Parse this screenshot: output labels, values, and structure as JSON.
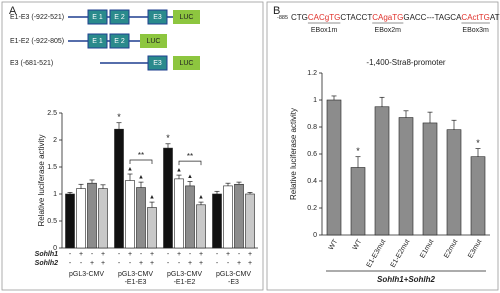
{
  "panel_a": {
    "label": "A",
    "constructs": [
      {
        "name": "E1-E3 (-922-521)",
        "elements": [
          "E 1",
          "E 2",
          "E3"
        ],
        "reporter": "LUC"
      },
      {
        "name": "E1-E2 (-922-805)",
        "elements": [
          "E 1",
          "E 2"
        ],
        "reporter": "LUC"
      },
      {
        "name": "E3 (-681-521)",
        "elements": [
          "E3"
        ],
        "reporter": "LUC"
      }
    ],
    "element_color": "#2a8a8c",
    "reporter_color": "#8dc63f"
  },
  "panel_b": {
    "label": "B",
    "sequence": {
      "start": "-885",
      "highlight_color": "#e0302a",
      "segments": [
        {
          "text": "CTG"
        },
        {
          "text": "CACgTG",
          "highlight": true,
          "label": "EBox1m"
        },
        {
          "text": "CTACCT"
        },
        {
          "text": "CAgaTG",
          "highlight": true,
          "label": "EBox2m"
        },
        {
          "text": "GACC---TAGCA"
        },
        {
          "text": "CActTG",
          "highlight": true,
          "label": "EBox3m"
        },
        {
          "text": "AT"
        }
      ]
    }
  },
  "chart_data": [
    {
      "type": "bar",
      "ylabel": "Relative luciferase activity",
      "categories": [
        "pGL3-CMV",
        "pGL3-CMV\n-E1-E3",
        "pGL3-CMV\n-E1-E2",
        "pGL3-CMV\n-E3"
      ],
      "series": [
        {
          "color": "#111111",
          "values": [
            1.0,
            2.2,
            1.85,
            1.0
          ],
          "errors": [
            0.03,
            0.12,
            0.08,
            0.05
          ]
        },
        {
          "color": "#ffffff",
          "values": [
            1.1,
            1.25,
            1.28,
            1.15
          ],
          "errors": [
            0.08,
            0.12,
            0.07,
            0.05
          ]
        },
        {
          "color": "#8c8c8c",
          "values": [
            1.2,
            1.12,
            1.15,
            1.18
          ],
          "errors": [
            0.06,
            0.1,
            0.08,
            0.04
          ]
        },
        {
          "color": "#c8c8c8",
          "values": [
            1.1,
            0.75,
            0.8,
            1.0
          ],
          "errors": [
            0.07,
            0.1,
            0.05,
            0.03
          ]
        }
      ],
      "conditions": [
        {
          "label": "Sohlh1",
          "marks": [
            "-",
            "+",
            "-",
            "+"
          ]
        },
        {
          "label": "Sohlh2",
          "marks": [
            "-",
            "-",
            "+",
            "+"
          ]
        }
      ],
      "annotations": [
        {
          "text": "*",
          "group": 1,
          "series": 0
        },
        {
          "text": "*",
          "group": 2,
          "series": 0
        },
        {
          "text": "▲",
          "group": 1,
          "series": 1
        },
        {
          "text": "▲",
          "group": 1,
          "series": 2
        },
        {
          "text": "▲",
          "group": 1,
          "series": 3
        },
        {
          "text": "▲",
          "group": 2,
          "series": 1
        },
        {
          "text": "▲",
          "group": 2,
          "series": 2
        },
        {
          "text": "▲",
          "group": 2,
          "series": 3
        }
      ],
      "brackets": [
        {
          "text": "**",
          "group": 1,
          "from": 1,
          "to": 3
        },
        {
          "text": "**",
          "group": 2,
          "from": 1,
          "to": 3
        }
      ],
      "ylim": [
        0,
        2.5
      ],
      "yticks": [
        0,
        0.5,
        1,
        1.5,
        2,
        2.5
      ]
    },
    {
      "type": "bar",
      "title": "-1,400-Stra8-promoter",
      "ylabel": "Relative luciferase activity",
      "xlabel": "Sohlh1+Sohlh2",
      "categories": [
        "WT",
        "WT",
        "E1-E3mut",
        "E1-E2mut",
        "E1mut",
        "E2mut",
        "E3mut"
      ],
      "values": [
        1.0,
        0.5,
        0.95,
        0.87,
        0.83,
        0.78,
        0.58
      ],
      "errors": [
        0.03,
        0.08,
        0.07,
        0.05,
        0.08,
        0.07,
        0.06
      ],
      "color": "#8c8c8c",
      "annotations": [
        {
          "text": "*",
          "index": 1
        },
        {
          "text": "*",
          "index": 6
        }
      ],
      "ylim": [
        0,
        1.2
      ],
      "yticks": [
        0,
        0.2,
        0.4,
        0.6,
        0.8,
        1,
        1.2
      ]
    }
  ]
}
